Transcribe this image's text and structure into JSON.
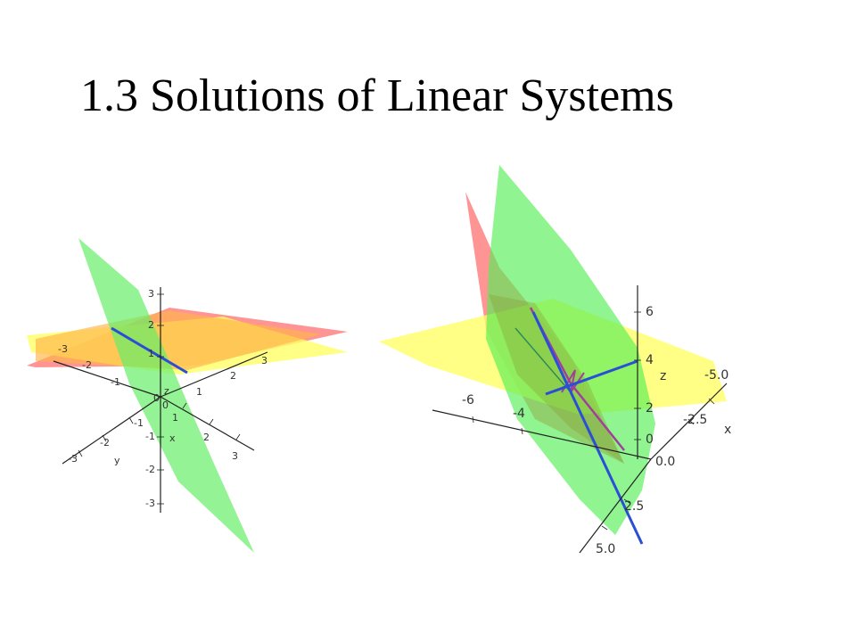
{
  "slide": {
    "title": "1.3 Solutions of Linear Systems"
  },
  "colors": {
    "plane_red": "#ff6f6f",
    "plane_yellow": "#ffff66",
    "plane_orange": "#ffb84d",
    "plane_green": "#66ee66",
    "solution_line_blue": "#2a4fd6",
    "line_purple": "#a0409a",
    "axis": "#222222"
  },
  "plot_left": {
    "z_ticks": [
      "3",
      "2",
      "1",
      "-1",
      "-2",
      "-3"
    ],
    "x_ticks": [
      "-3",
      "-2",
      "-1",
      "0",
      "1",
      "2",
      "3"
    ],
    "y_ticks": [
      "-3",
      "-2",
      "-1",
      "0",
      "1",
      "2",
      "3"
    ],
    "x_label": "x",
    "y_label": "y",
    "z_label": "z"
  },
  "plot_right": {
    "z_ticks": [
      "6",
      "4",
      "2",
      "0"
    ],
    "x_ticks": [
      "-5.0",
      "-2.5",
      "0.0"
    ],
    "x_label": "x",
    "y_ticks": [
      "-6",
      "-4",
      "2.5",
      "5.0"
    ],
    "z_label": "z"
  }
}
